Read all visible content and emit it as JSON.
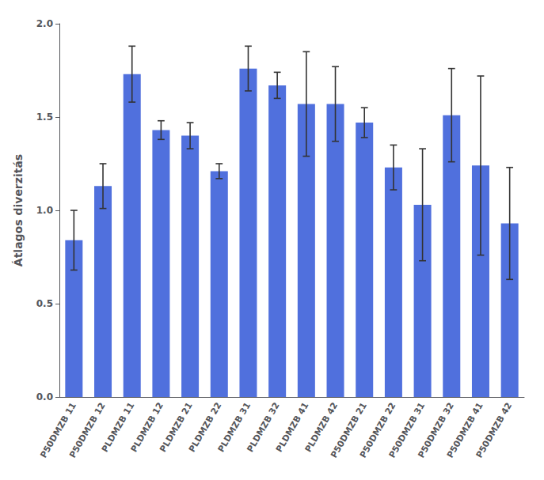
{
  "chart_data": {
    "type": "bar",
    "categories": [
      "P50DMZB 11",
      "P50DMZB 12",
      "PLDMZB 11",
      "PLDMZB 12",
      "PLDMZB 21",
      "PLDMZB 22",
      "PLDMZB 31",
      "PLDMZB 32",
      "PLDMZB 41",
      "PLDMZB 42",
      "P50DMZB 21",
      "P50DMZB 22",
      "P50DMZB 31",
      "P50DMZB 32",
      "P50DMZB 41",
      "P50DMZB 42"
    ],
    "values": [
      0.84,
      1.13,
      1.73,
      1.43,
      1.4,
      1.21,
      1.76,
      1.67,
      1.57,
      1.57,
      1.47,
      1.23,
      1.03,
      1.51,
      1.24,
      0.93
    ],
    "errors": [
      0.16,
      0.12,
      0.15,
      0.05,
      0.07,
      0.04,
      0.12,
      0.07,
      0.28,
      0.2,
      0.08,
      0.12,
      0.3,
      0.25,
      0.48,
      0.3
    ],
    "ylabel": "Átlagos diverzitás",
    "ylim": [
      0,
      2.0
    ],
    "yticks": [
      {
        "value": 0,
        "label": "0.0"
      },
      0.5,
      {
        "value": 1,
        "label": "1.0"
      },
      1.5,
      {
        "value": 2,
        "label": "2.0"
      }
    ],
    "grid": false
  }
}
